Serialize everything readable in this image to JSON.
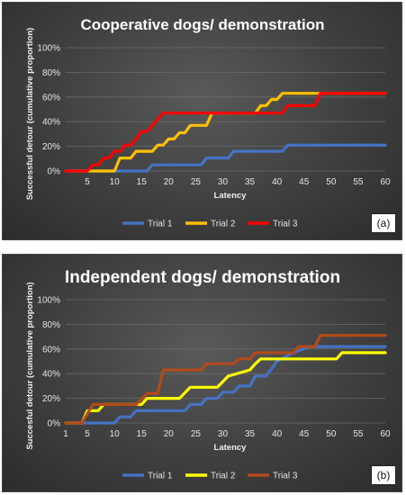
{
  "chart_data": [
    {
      "type": "line",
      "title": "Cooperative dogs/ demonstration",
      "xlabel": "Latency",
      "ylabel": "Successful detour (cumulative proportion)",
      "xlim": [
        1,
        60
      ],
      "ylim": [
        0,
        1
      ],
      "x_ticks": [
        "5",
        "10",
        "15",
        "20",
        "25",
        "30",
        "35",
        "40",
        "45",
        "50",
        "55",
        "60"
      ],
      "y_ticks": [
        "0%",
        "20%",
        "40%",
        "60%",
        "80%",
        "100%"
      ],
      "grid": true,
      "legend": "bottom",
      "tag": "(a)",
      "series": [
        {
          "name": "Trial 1",
          "color": "#4472c4",
          "x": [
            1,
            16,
            17,
            26,
            27,
            31,
            32,
            41,
            42,
            60
          ],
          "y": [
            0,
            0,
            0.05,
            0.05,
            0.105,
            0.105,
            0.16,
            0.16,
            0.21,
            0.21
          ]
        },
        {
          "name": "Trial 2",
          "color": "#ffc000",
          "x": [
            1,
            10,
            11,
            13,
            14,
            17,
            18,
            19,
            20,
            21,
            22,
            23,
            24,
            27,
            28,
            36,
            37,
            38,
            39,
            40,
            41,
            47,
            48,
            60
          ],
          "y": [
            0,
            0,
            0.105,
            0.105,
            0.16,
            0.16,
            0.21,
            0.21,
            0.26,
            0.26,
            0.31,
            0.31,
            0.37,
            0.37,
            0.47,
            0.47,
            0.53,
            0.53,
            0.58,
            0.58,
            0.63,
            0.63,
            0.63,
            0.63
          ]
        },
        {
          "name": "Trial 3",
          "color": "#ff0000",
          "x": [
            1,
            5,
            6,
            7,
            8,
            9,
            10,
            11,
            12,
            13,
            14,
            15,
            16,
            17,
            18,
            19,
            41,
            42,
            47,
            48,
            60
          ],
          "y": [
            0,
            0,
            0.05,
            0.05,
            0.105,
            0.105,
            0.16,
            0.16,
            0.21,
            0.21,
            0.26,
            0.32,
            0.32,
            0.37,
            0.42,
            0.47,
            0.47,
            0.53,
            0.53,
            0.63,
            0.63
          ]
        }
      ]
    },
    {
      "type": "line",
      "title": "Independent dogs/ demonstration",
      "xlabel": "Latency",
      "ylabel": "Succesful detour (cumulative proportion)",
      "xlim": [
        1,
        60
      ],
      "ylim": [
        0,
        1
      ],
      "x_ticks": [
        "1",
        "5",
        "10",
        "15",
        "20",
        "25",
        "30",
        "35",
        "40",
        "45",
        "50",
        "55",
        "60"
      ],
      "y_ticks": [
        "0%",
        "20%",
        "40%",
        "60%",
        "80%",
        "100%"
      ],
      "grid": true,
      "legend": "bottom",
      "tag": "(b)",
      "series": [
        {
          "name": "Trial 1",
          "color": "#4472c4",
          "x": [
            1,
            10,
            11,
            13,
            14,
            23,
            24,
            26,
            27,
            29,
            30,
            32,
            33,
            35,
            36,
            38,
            40,
            43,
            46,
            60
          ],
          "y": [
            0,
            0,
            0.05,
            0.05,
            0.1,
            0.1,
            0.15,
            0.15,
            0.2,
            0.2,
            0.25,
            0.25,
            0.3,
            0.3,
            0.38,
            0.38,
            0.5,
            0.57,
            0.62,
            0.62
          ]
        },
        {
          "name": "Trial 2",
          "color": "#ffff00",
          "x": [
            1,
            4,
            5,
            7,
            8,
            15,
            16,
            22,
            24,
            29,
            31,
            35,
            36,
            37,
            51,
            52,
            60
          ],
          "y": [
            0,
            0,
            0.1,
            0.1,
            0.15,
            0.15,
            0.2,
            0.2,
            0.29,
            0.29,
            0.38,
            0.43,
            0.48,
            0.52,
            0.52,
            0.57,
            0.57
          ]
        },
        {
          "name": "Trial 3",
          "color": "#b34a1a",
          "x": [
            1,
            4,
            6,
            14,
            16,
            18,
            19,
            26,
            27,
            32,
            33,
            35,
            36,
            43,
            44,
            47,
            48,
            60
          ],
          "y": [
            0,
            0,
            0.15,
            0.15,
            0.24,
            0.24,
            0.43,
            0.43,
            0.48,
            0.48,
            0.52,
            0.52,
            0.57,
            0.57,
            0.62,
            0.62,
            0.71,
            0.71
          ]
        }
      ]
    }
  ]
}
